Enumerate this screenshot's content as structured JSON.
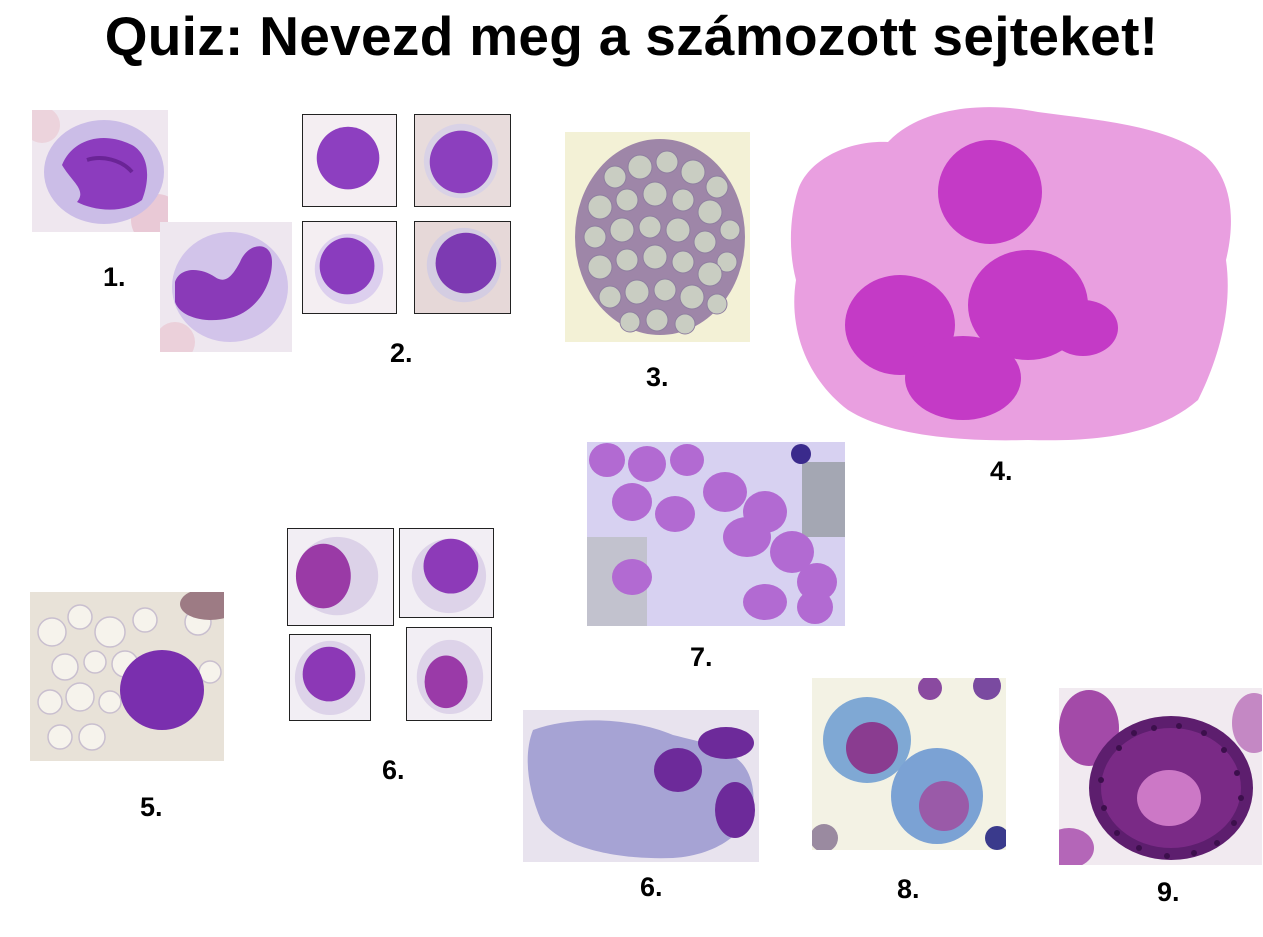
{
  "slide": {
    "title": "Quiz: Nevezd meg a számozott sejteket!",
    "labels": {
      "l1": "1.",
      "l2": "2.",
      "l3": "3.",
      "l4": "4.",
      "l5": "5.",
      "l6a": "6.",
      "l6b": "6.",
      "l7": "7.",
      "l8": "8.",
      "l9": "9."
    }
  },
  "colors": {
    "nucleus": "#7a2aa8",
    "cytoplasm_pink": "#e79be0",
    "megakaryocyte_nucleus": "#c02ec6",
    "background_cream": "#f2efdc"
  }
}
